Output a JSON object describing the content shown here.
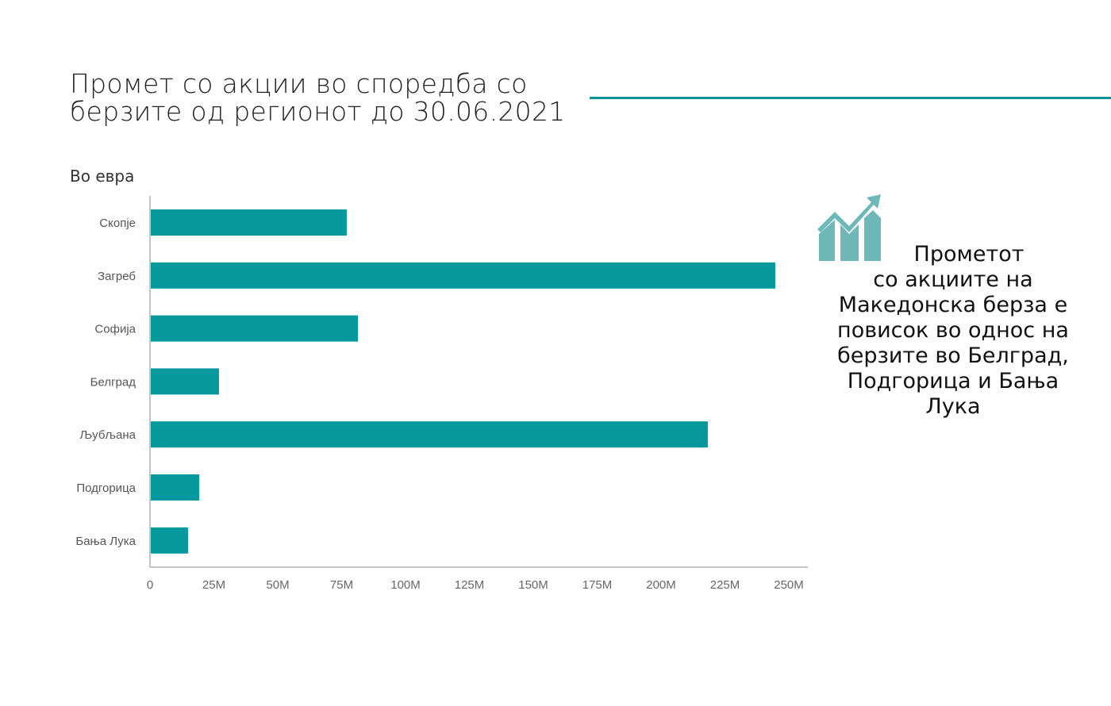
{
  "title_line1": "Промет со акции во споредба со",
  "title_line2": "берзите од регионот до 30.06.2021",
  "unit_label": "Во евра",
  "side_text_line1": "Прометот",
  "side_text_rest": "со акциите на Македонска берза е повисок во однос на берзите во Белград, Подгорица и Бања Лука",
  "colors": {
    "bar": "#05989c",
    "icon": "#6fb8b9",
    "rule": "#0a9396"
  },
  "chart_data": {
    "type": "bar",
    "orientation": "horizontal",
    "title": "Промет со акции во споредба со берзите од регионот до 30.06.2021",
    "ylabel": "Во евра",
    "categories": [
      "Скопје",
      "Загреб",
      "Софија",
      "Белград",
      "Љубљана",
      "Подгорица",
      "Бања Лука"
    ],
    "values": [
      77,
      244.7,
      81.4,
      27,
      218.3,
      19.3,
      14.9
    ],
    "value_unit": "M EUR",
    "xlim": [
      0,
      250
    ],
    "xticks": [
      0,
      25,
      50,
      75,
      100,
      125,
      150,
      175,
      200,
      225,
      250
    ],
    "xtick_labels": [
      "0",
      "25M",
      "50M",
      "75M",
      "100M",
      "125M",
      "150M",
      "175M",
      "200M",
      "225M",
      "250M"
    ],
    "grid": false,
    "legend": "none"
  }
}
